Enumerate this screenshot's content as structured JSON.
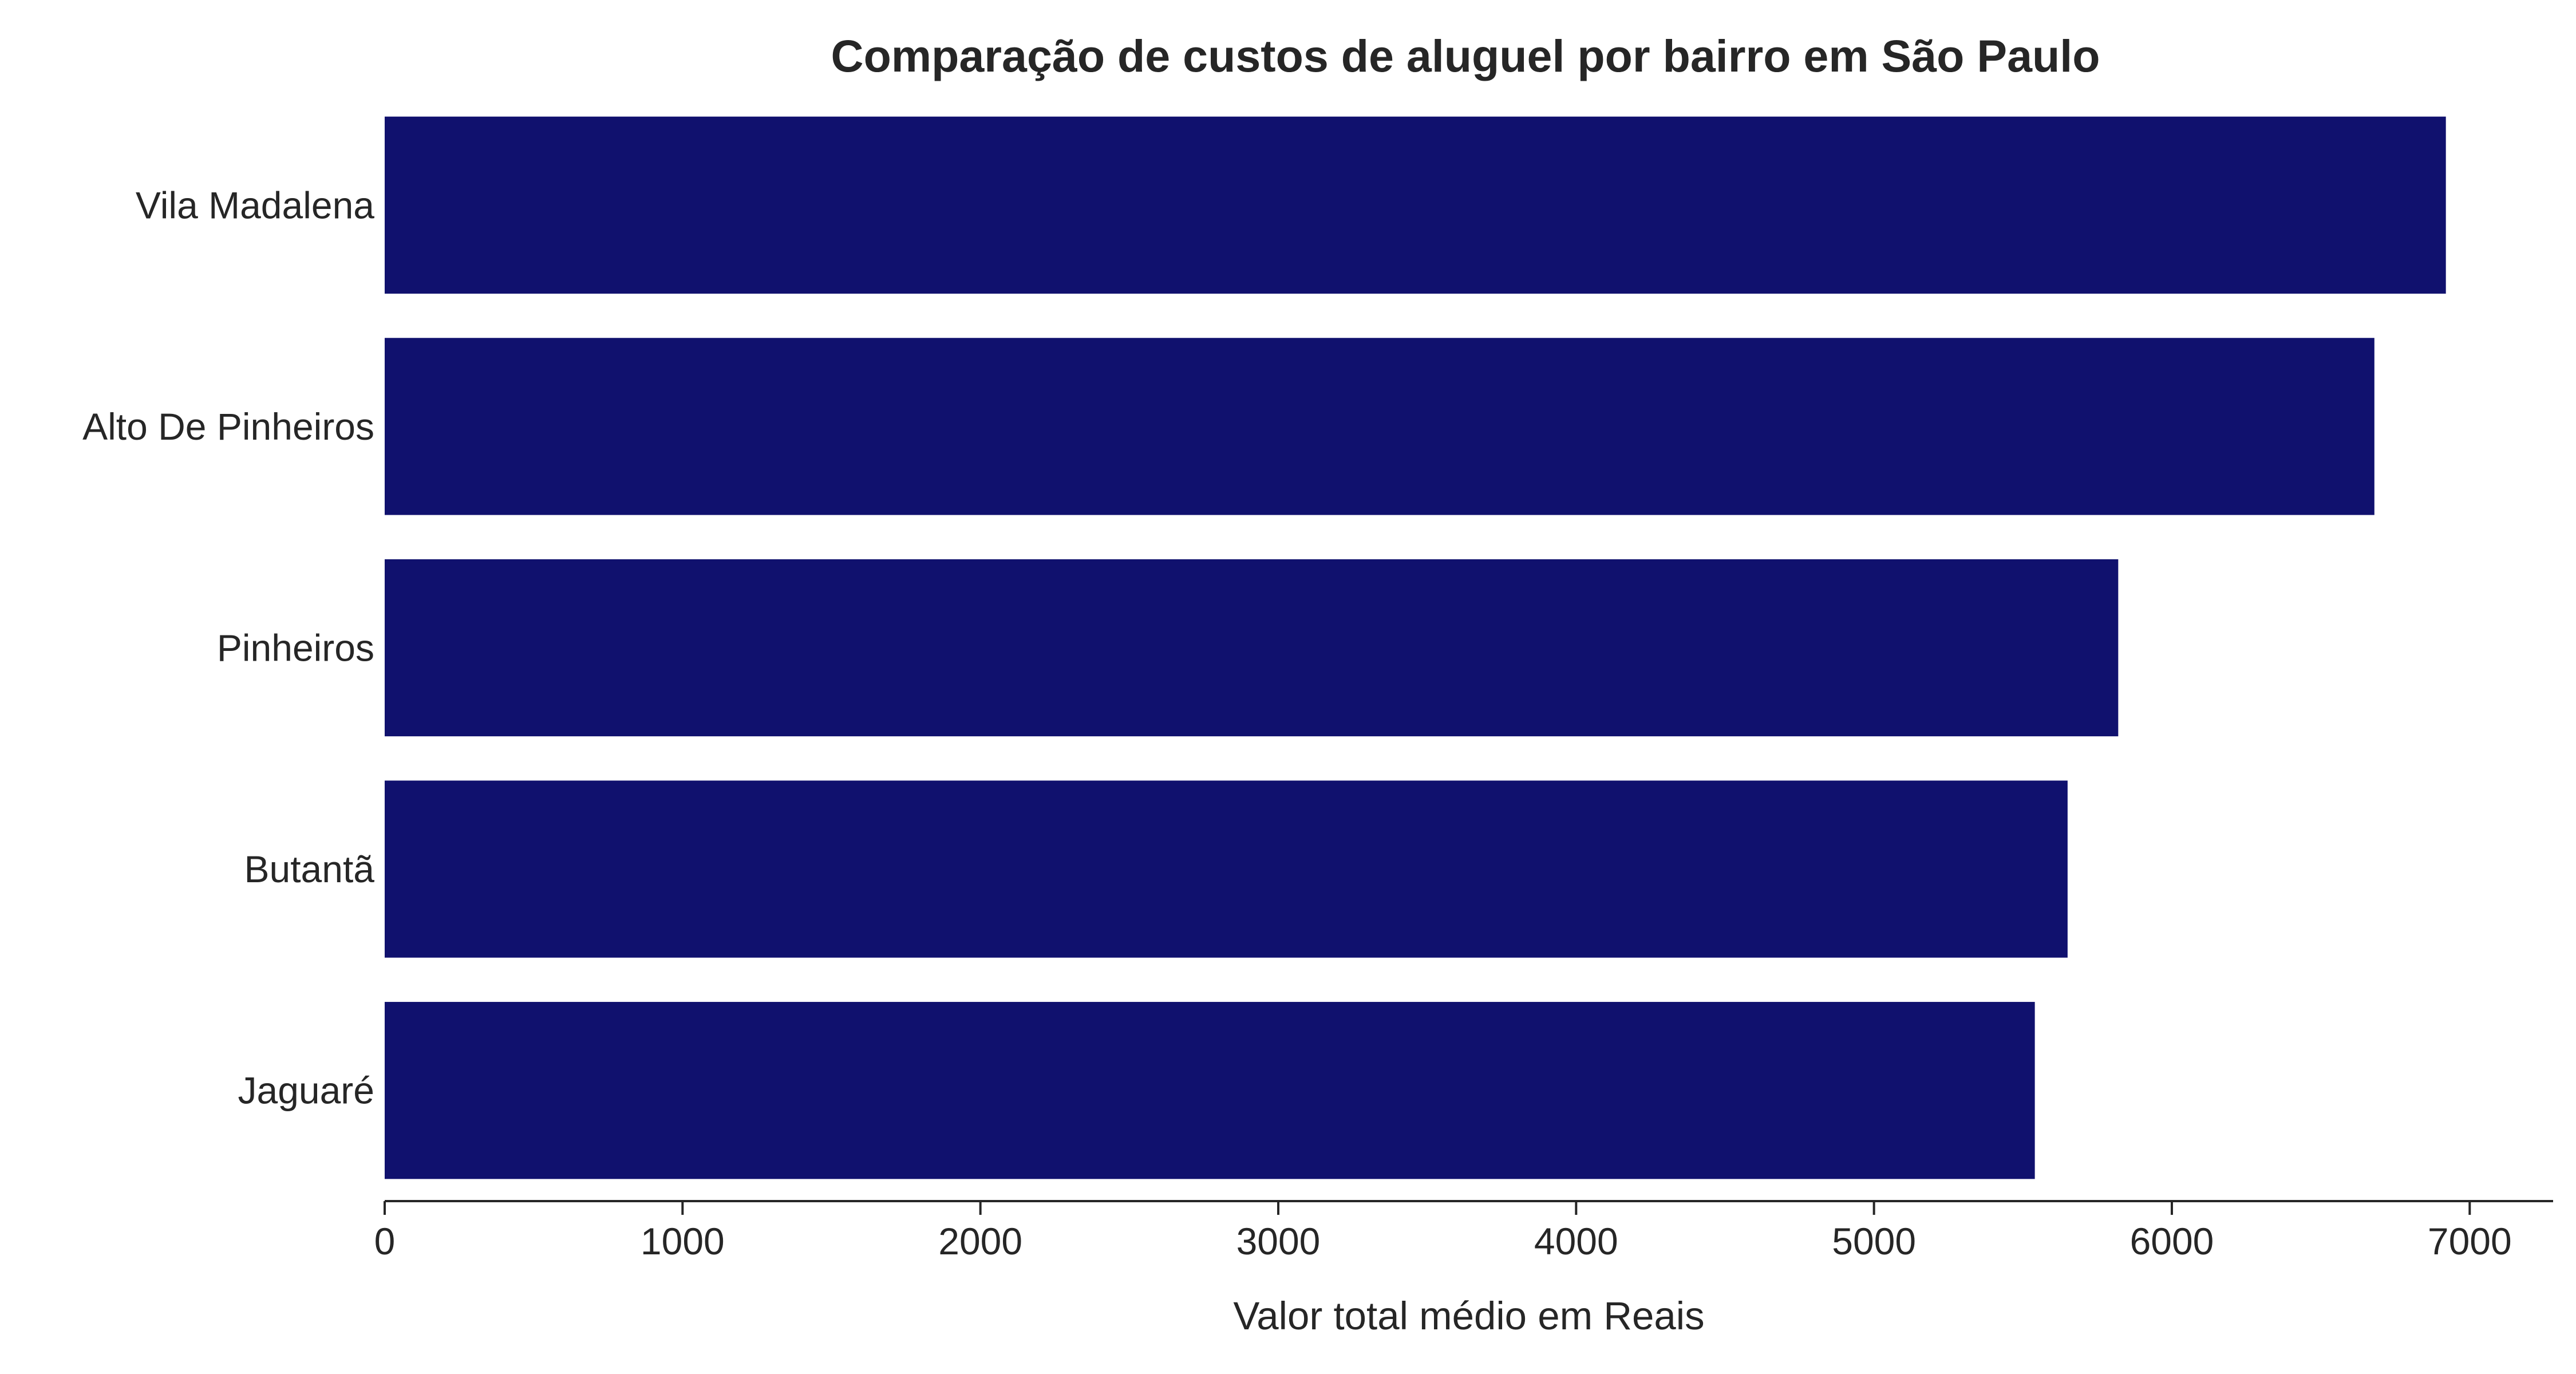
{
  "chart_data": {
    "type": "bar",
    "orientation": "horizontal",
    "title": "Comparação de custos de aluguel por bairro em São Paulo",
    "xlabel": "Valor total médio em Reais",
    "ylabel": "",
    "categories": [
      "Vila Madalena",
      "Alto De Pinheiros",
      "Pinheiros",
      "Butantã",
      "Jaguaré"
    ],
    "values": [
      6920,
      6680,
      5820,
      5650,
      5540
    ],
    "xlim": [
      0,
      7280
    ],
    "xticks": [
      0,
      1000,
      2000,
      3000,
      4000,
      5000,
      6000,
      7000
    ],
    "xtick_labels": [
      "0",
      "1000",
      "2000",
      "3000",
      "4000",
      "5000",
      "6000",
      "7000"
    ],
    "bar_color": "#10116e",
    "grid": false,
    "legend": "none"
  }
}
